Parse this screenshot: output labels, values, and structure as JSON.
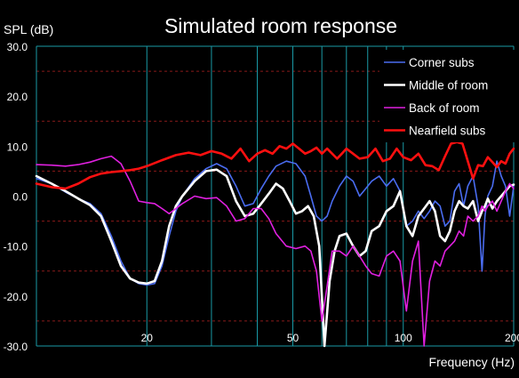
{
  "chart_data": {
    "type": "line",
    "title": "Simulated room response",
    "ylabel": "SPL (dB)",
    "xlabel": "Frequency (Hz)",
    "x_scale": "log",
    "xlim": [
      10,
      200
    ],
    "ylim": [
      -30,
      30
    ],
    "x_ticks": [
      {
        "value": 20,
        "label": "20"
      },
      {
        "value": 50,
        "label": "50"
      },
      {
        "value": 100,
        "label": "100"
      },
      {
        "value": 200,
        "label": "200"
      }
    ],
    "y_ticks": [
      {
        "value": 30,
        "label": "30.0"
      },
      {
        "value": 20,
        "label": "20.0"
      },
      {
        "value": 10,
        "label": "10.0"
      },
      {
        "value": 0,
        "label": "0.0"
      },
      {
        "value": -10,
        "label": "-10.0"
      },
      {
        "value": -20,
        "label": "-20.0"
      },
      {
        "value": -30,
        "label": "-30.0"
      }
    ],
    "grid": {
      "vertical": true,
      "major_horizontal": false,
      "minor_horizontal_dashed": true
    },
    "legend_position": "top-right",
    "colors": {
      "background": "#000000",
      "grid_major": "#1a9aa6",
      "grid_minor": "#8a1a1a",
      "text": "#ffffff"
    },
    "series": [
      {
        "name": "Corner subs",
        "color": "#4a6cf0",
        "line_width": 1.6,
        "points": [
          [
            10,
            3.5
          ],
          [
            11,
            2.5
          ],
          [
            12,
            0.8
          ],
          [
            13,
            -0.5
          ],
          [
            14,
            -1.5
          ],
          [
            15,
            -3.5
          ],
          [
            16,
            -8
          ],
          [
            17,
            -13
          ],
          [
            18,
            -16.5
          ],
          [
            19,
            -17.5
          ],
          [
            20,
            -17.8
          ],
          [
            21,
            -17.5
          ],
          [
            22,
            -14
          ],
          [
            23,
            -8
          ],
          [
            24,
            -3
          ],
          [
            25,
            0
          ],
          [
            27,
            3.5
          ],
          [
            29,
            5.5
          ],
          [
            31,
            6.5
          ],
          [
            33,
            5.5
          ],
          [
            35,
            2
          ],
          [
            37,
            -2
          ],
          [
            39,
            -1.5
          ],
          [
            41,
            1.5
          ],
          [
            43,
            4
          ],
          [
            45,
            6
          ],
          [
            48,
            7
          ],
          [
            51,
            6.5
          ],
          [
            54,
            4
          ],
          [
            56,
            0
          ],
          [
            58,
            -4
          ],
          [
            60,
            -5
          ],
          [
            62,
            -4
          ],
          [
            64,
            -1
          ],
          [
            67,
            2
          ],
          [
            70,
            4
          ],
          [
            73,
            3
          ],
          [
            76,
            0
          ],
          [
            79,
            1.5
          ],
          [
            82,
            3
          ],
          [
            86,
            4
          ],
          [
            90,
            2
          ],
          [
            94,
            3.5
          ],
          [
            98,
            1
          ],
          [
            102,
            -6
          ],
          [
            106,
            -5
          ],
          [
            110,
            -3
          ],
          [
            114,
            -4.5
          ],
          [
            118,
            -3
          ],
          [
            122,
            -1
          ],
          [
            126,
            -2
          ],
          [
            130,
            -6
          ],
          [
            134,
            -5
          ],
          [
            138,
            1
          ],
          [
            142,
            2.5
          ],
          [
            146,
            -2
          ],
          [
            150,
            2
          ],
          [
            155,
            4
          ],
          [
            160,
            -2
          ],
          [
            164,
            -15
          ],
          [
            167,
            -4
          ],
          [
            170,
            0
          ],
          [
            175,
            2
          ],
          [
            180,
            7
          ],
          [
            185,
            4
          ],
          [
            190,
            2
          ],
          [
            195,
            -4
          ],
          [
            200,
            2
          ]
        ]
      },
      {
        "name": "Middle of room",
        "color": "#ffffff",
        "line_width": 2.6,
        "points": [
          [
            10,
            4
          ],
          [
            11,
            2.5
          ],
          [
            12,
            1
          ],
          [
            13,
            -0.5
          ],
          [
            14,
            -1.8
          ],
          [
            15,
            -4
          ],
          [
            16,
            -9
          ],
          [
            17,
            -14
          ],
          [
            18,
            -16.5
          ],
          [
            19,
            -17.3
          ],
          [
            20,
            -17.5
          ],
          [
            21,
            -17
          ],
          [
            22,
            -13
          ],
          [
            23,
            -6
          ],
          [
            24,
            -2
          ],
          [
            25,
            0
          ],
          [
            27,
            3
          ],
          [
            29,
            5
          ],
          [
            31,
            5.3
          ],
          [
            33,
            4
          ],
          [
            35,
            -1
          ],
          [
            37,
            -4
          ],
          [
            39,
            -3.5
          ],
          [
            41,
            -1.5
          ],
          [
            43,
            0.5
          ],
          [
            45,
            2.5
          ],
          [
            47,
            1.5
          ],
          [
            49,
            -1
          ],
          [
            51,
            -3.5
          ],
          [
            53,
            -3
          ],
          [
            55,
            -2
          ],
          [
            57,
            -4
          ],
          [
            59,
            -10
          ],
          [
            61,
            -30
          ],
          [
            63,
            -17
          ],
          [
            65,
            -11
          ],
          [
            67,
            -8
          ],
          [
            70,
            -7.5
          ],
          [
            73,
            -10
          ],
          [
            76,
            -12
          ],
          [
            79,
            -11
          ],
          [
            82,
            -7
          ],
          [
            86,
            -6
          ],
          [
            90,
            -3
          ],
          [
            94,
            -2
          ],
          [
            98,
            1
          ],
          [
            102,
            -6
          ],
          [
            106,
            -8
          ],
          [
            110,
            -4
          ],
          [
            114,
            -2.5
          ],
          [
            118,
            -1
          ],
          [
            122,
            -3
          ],
          [
            126,
            -8
          ],
          [
            130,
            -9
          ],
          [
            134,
            -7
          ],
          [
            138,
            -3
          ],
          [
            142,
            -1
          ],
          [
            146,
            -2
          ],
          [
            150,
            -2.5
          ],
          [
            155,
            -1
          ],
          [
            160,
            -5
          ],
          [
            164,
            -3
          ],
          [
            167,
            -2
          ],
          [
            170,
            -0.5
          ],
          [
            175,
            -2.5
          ],
          [
            180,
            -1
          ],
          [
            185,
            0
          ],
          [
            190,
            1
          ],
          [
            195,
            2
          ],
          [
            200,
            2.3
          ]
        ]
      },
      {
        "name": "Back of room",
        "color": "#e020e0",
        "line_width": 1.6,
        "points": [
          [
            10,
            6.3
          ],
          [
            11,
            6.2
          ],
          [
            12,
            6
          ],
          [
            13,
            6.3
          ],
          [
            14,
            6.8
          ],
          [
            15,
            7.5
          ],
          [
            16,
            8
          ],
          [
            17,
            6.5
          ],
          [
            18,
            3
          ],
          [
            19,
            -1
          ],
          [
            20,
            -1.3
          ],
          [
            21,
            -1.5
          ],
          [
            22,
            -2.5
          ],
          [
            23,
            -3.5
          ],
          [
            25,
            -1.5
          ],
          [
            27,
            0
          ],
          [
            29,
            -0.5
          ],
          [
            31,
            -0.3
          ],
          [
            33,
            -2
          ],
          [
            35,
            -5
          ],
          [
            37,
            -4.5
          ],
          [
            39,
            -2.5
          ],
          [
            41,
            -2.5
          ],
          [
            43,
            -4.5
          ],
          [
            45,
            -7.5
          ],
          [
            48,
            -10
          ],
          [
            51,
            -10.5
          ],
          [
            54,
            -10
          ],
          [
            56,
            -11
          ],
          [
            58,
            -15
          ],
          [
            60,
            -25
          ],
          [
            62,
            -18
          ],
          [
            64,
            -11
          ],
          [
            67,
            -11
          ],
          [
            70,
            -12
          ],
          [
            73,
            -10
          ],
          [
            76,
            -12
          ],
          [
            79,
            -14
          ],
          [
            82,
            -15.5
          ],
          [
            86,
            -16
          ],
          [
            90,
            -12
          ],
          [
            94,
            -11
          ],
          [
            98,
            -13
          ],
          [
            102,
            -23
          ],
          [
            106,
            -13
          ],
          [
            110,
            -9
          ],
          [
            114,
            -30
          ],
          [
            118,
            -17
          ],
          [
            122,
            -13
          ],
          [
            126,
            -14
          ],
          [
            130,
            -11
          ],
          [
            134,
            -10
          ],
          [
            138,
            -9
          ],
          [
            142,
            -7
          ],
          [
            146,
            -8
          ],
          [
            150,
            -4
          ],
          [
            155,
            -5
          ],
          [
            160,
            -4
          ],
          [
            164,
            -2
          ],
          [
            167,
            -3
          ],
          [
            170,
            -2
          ],
          [
            175,
            -1
          ],
          [
            180,
            -3
          ],
          [
            185,
            -1
          ],
          [
            190,
            1
          ],
          [
            195,
            2.5
          ],
          [
            200,
            1.5
          ]
        ]
      },
      {
        "name": "Nearfield subs",
        "color": "#ff1010",
        "line_width": 2.6,
        "points": [
          [
            10,
            2.5
          ],
          [
            11,
            1.8
          ],
          [
            12,
            1.5
          ],
          [
            13,
            2.5
          ],
          [
            14,
            3.8
          ],
          [
            15,
            4.5
          ],
          [
            16,
            4.8
          ],
          [
            17,
            5
          ],
          [
            18,
            5.2
          ],
          [
            19,
            5.5
          ],
          [
            20,
            6
          ],
          [
            22,
            7.2
          ],
          [
            24,
            8.2
          ],
          [
            26,
            8.7
          ],
          [
            28,
            8.2
          ],
          [
            30,
            9
          ],
          [
            32,
            8.5
          ],
          [
            34,
            7.5
          ],
          [
            36,
            9.5
          ],
          [
            38,
            7
          ],
          [
            40,
            8.5
          ],
          [
            42,
            9.2
          ],
          [
            44,
            8.5
          ],
          [
            46,
            10
          ],
          [
            48,
            9.5
          ],
          [
            50,
            10.5
          ],
          [
            52,
            9.5
          ],
          [
            54,
            8.5
          ],
          [
            56,
            9
          ],
          [
            58,
            9.7
          ],
          [
            60,
            8.5
          ],
          [
            62,
            9.5
          ],
          [
            64,
            8.5
          ],
          [
            66,
            7.5
          ],
          [
            68,
            8.5
          ],
          [
            70,
            9.5
          ],
          [
            73,
            8.5
          ],
          [
            76,
            7.5
          ],
          [
            80,
            7.8
          ],
          [
            84,
            9.5
          ],
          [
            88,
            7
          ],
          [
            92,
            7.5
          ],
          [
            96,
            9.5
          ],
          [
            100,
            7.8
          ],
          [
            105,
            7.2
          ],
          [
            110,
            8.5
          ],
          [
            115,
            6.2
          ],
          [
            120,
            6
          ],
          [
            125,
            5.2
          ],
          [
            130,
            8
          ],
          [
            135,
            10.5
          ],
          [
            140,
            10.8
          ],
          [
            145,
            10.5
          ],
          [
            150,
            7
          ],
          [
            155,
            3.5
          ],
          [
            160,
            6.2
          ],
          [
            165,
            6
          ],
          [
            170,
            7.8
          ],
          [
            175,
            6.8
          ],
          [
            180,
            5.8
          ],
          [
            185,
            7
          ],
          [
            190,
            6.5
          ],
          [
            195,
            8.5
          ],
          [
            200,
            9.5
          ]
        ]
      }
    ]
  }
}
